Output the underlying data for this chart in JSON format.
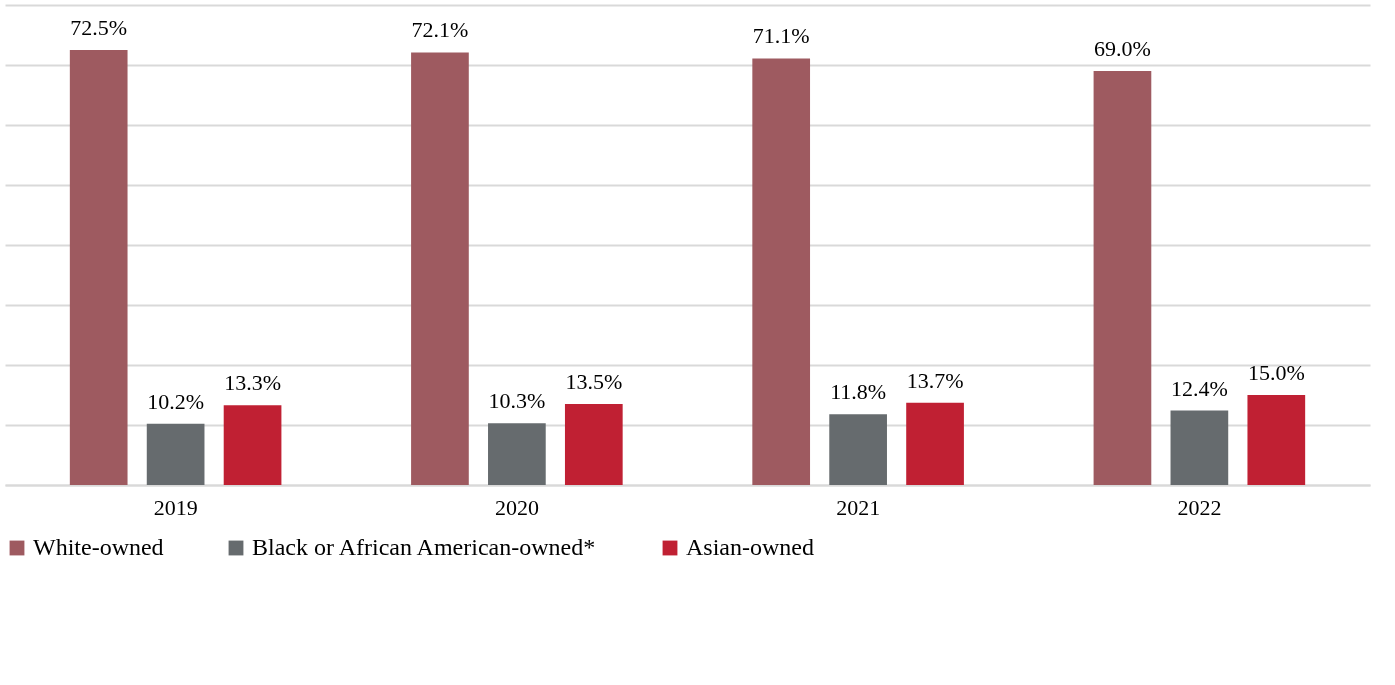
{
  "chart_data": {
    "type": "bar",
    "categories": [
      "2019",
      "2020",
      "2021",
      "2022"
    ],
    "series": [
      {
        "name": "White-owned",
        "color": "#9e5a60",
        "values": [
          72.5,
          72.1,
          71.1,
          69.0
        ],
        "value_labels": [
          "72.5%",
          "72.1%",
          "71.1%",
          "69.0%"
        ]
      },
      {
        "name": "Black or African American-owned*",
        "color": "#666b6e",
        "values": [
          10.2,
          10.3,
          11.8,
          12.4
        ],
        "value_labels": [
          "10.2%",
          "10.3%",
          "11.8%",
          "12.4%"
        ]
      },
      {
        "name": "Asian-owned",
        "color": "#c02033",
        "values": [
          13.3,
          13.5,
          13.7,
          15.0
        ],
        "value_labels": [
          "13.3%",
          "13.5%",
          "13.7%",
          "15.0%"
        ]
      }
    ],
    "ylim": [
      0,
      80
    ],
    "yticks": [
      {
        "value": 0,
        "label": null
      },
      {
        "value": 10,
        "label": null
      },
      {
        "value": 20,
        "label": null
      },
      {
        "value": 30,
        "label": null
      },
      {
        "value": 40,
        "label": null
      },
      {
        "value": 50,
        "label": null
      },
      {
        "value": 60,
        "label": null
      },
      {
        "value": 70,
        "label": null
      },
      {
        "value": 80,
        "label": null
      }
    ],
    "grid": "y",
    "legend": "bottom",
    "tick_labels": "x"
  }
}
